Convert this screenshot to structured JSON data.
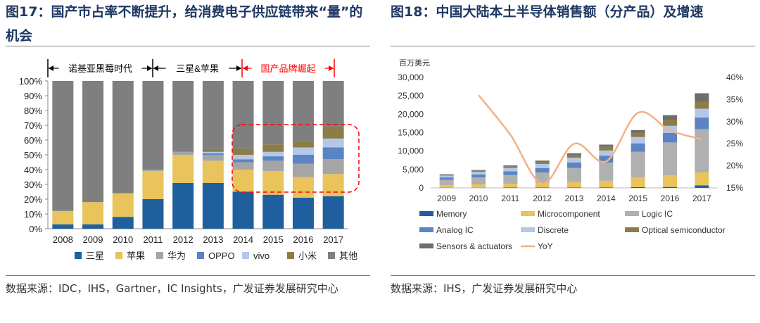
{
  "left": {
    "title": "图17：国产市占率不断提升，给消费电子供应链带来“量”的机会",
    "source": "数据来源：IDC，IHS，Gartner，IC Insights，广发证券发展研究中心",
    "annotations": {
      "era1": "诺基亚黑莓时代",
      "era2": "三星&苹果",
      "era3": "国产品牌崛起"
    },
    "colors": {
      "三星": "#1f5f9e",
      "苹果": "#e9c35b",
      "华为": "#a5a5a5",
      "OPPO": "#5b84c4",
      "vivo": "#b4c7e7",
      "小米": "#8c7d47",
      "其他": "#7f7f7f",
      "era3": "#ff0000"
    }
  },
  "right": {
    "title": "图18：中国大陆本土半导体销售额（分产品）及增速",
    "source": "数据来源：IHS，广发证券发展研究中心",
    "unit": "百万美元",
    "colors": {
      "Memory": "#1f5f9e",
      "Microcomponent": "#e9c35b",
      "Logic IC": "#b0b0b0",
      "Analog IC": "#5b84c4",
      "Discrete": "#b4c7e7",
      "Optical semiconductor": "#8c7d47",
      "Sensors & actuators": "#6d6d6d",
      "YoY": "#f4b183"
    }
  },
  "chart_data": [
    {
      "type": "bar",
      "stacked": true,
      "categories": [
        "2008",
        "2009",
        "2010",
        "2011",
        "2012",
        "2013",
        "2014",
        "2015",
        "2016",
        "2017"
      ],
      "ylim": [
        0,
        100
      ],
      "yticks": [
        "0%",
        "10%",
        "20%",
        "30%",
        "40%",
        "50%",
        "60%",
        "70%",
        "80%",
        "90%",
        "100%"
      ],
      "series": [
        {
          "name": "三星",
          "values": [
            3,
            3,
            8,
            20,
            31,
            31,
            25,
            23,
            21,
            22
          ]
        },
        {
          "name": "苹果",
          "values": [
            9,
            15,
            16,
            19,
            19,
            15,
            15,
            16,
            14,
            15
          ]
        },
        {
          "name": "华为",
          "values": [
            0,
            0,
            0,
            1,
            2,
            4,
            5,
            7,
            9,
            10
          ]
        },
        {
          "name": "OPPO",
          "values": [
            0,
            0,
            0,
            0,
            0,
            1,
            2,
            3,
            6,
            8
          ]
        },
        {
          "name": "vivo",
          "values": [
            0,
            0,
            0,
            0,
            0,
            1,
            3,
            3,
            5,
            6
          ]
        },
        {
          "name": "小米",
          "values": [
            0,
            0,
            0,
            0,
            0,
            2,
            4,
            5,
            4,
            8
          ]
        },
        {
          "name": "其他",
          "values": [
            88,
            82,
            76,
            60,
            48,
            46,
            46,
            43,
            41,
            31
          ]
        }
      ],
      "legend_position": "bottom"
    },
    {
      "type": "bar",
      "stacked": true,
      "with_line": true,
      "categories": [
        "2009",
        "2010",
        "2011",
        "2012",
        "2013",
        "2014",
        "2015",
        "2016",
        "2017"
      ],
      "ylim": [
        0,
        30000
      ],
      "yticks": [
        "0",
        "5,000",
        "10,000",
        "15,000",
        "20,000",
        "25,000",
        "30,000"
      ],
      "y2lim": [
        15,
        40
      ],
      "y2ticks": [
        "15%",
        "20%",
        "25%",
        "30%",
        "35%",
        "40%"
      ],
      "series": [
        {
          "name": "Memory",
          "values": [
            50,
            50,
            100,
            100,
            100,
            150,
            200,
            250,
            700
          ]
        },
        {
          "name": "Microcomponent",
          "values": [
            700,
            900,
            1000,
            1200,
            1500,
            1800,
            2600,
            3200,
            3500
          ]
        },
        {
          "name": "Logic IC",
          "values": [
            1400,
            1900,
            2400,
            2900,
            3800,
            4900,
            7000,
            8900,
            11700
          ]
        },
        {
          "name": "Analog IC",
          "values": [
            700,
            800,
            1000,
            1200,
            1500,
            1900,
            2300,
            2600,
            3200
          ]
        },
        {
          "name": "Discrete",
          "values": [
            500,
            700,
            900,
            1100,
            1300,
            1400,
            1700,
            1900,
            2400
          ]
        },
        {
          "name": "Optical semiconductor",
          "values": [
            200,
            300,
            400,
            500,
            700,
            1000,
            1200,
            1600,
            1900
          ]
        },
        {
          "name": "Sensors & actuators",
          "values": [
            150,
            200,
            300,
            400,
            500,
            600,
            700,
            1300,
            2300
          ]
        },
        {
          "name": "YoY",
          "type": "line",
          "axis": "right",
          "values": [
            null,
            36,
            27,
            16,
            25,
            21,
            32,
            28,
            26
          ]
        }
      ],
      "legend_position": "bottom"
    }
  ]
}
